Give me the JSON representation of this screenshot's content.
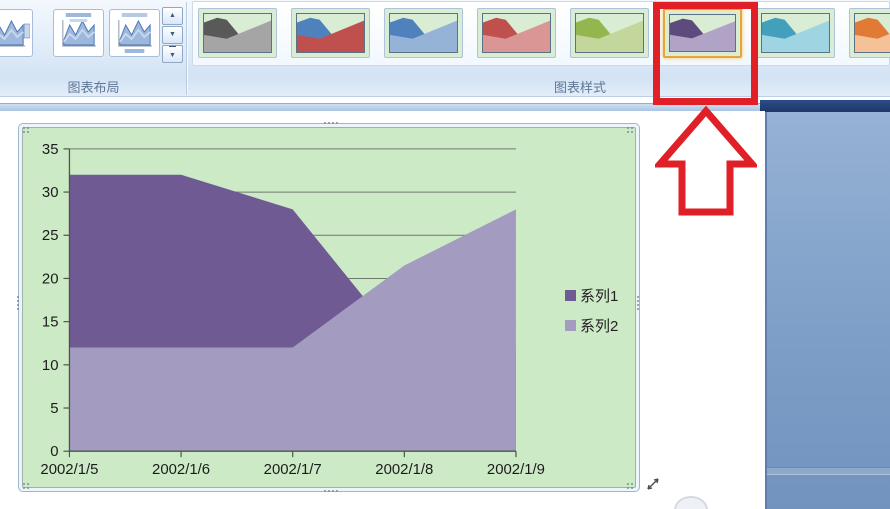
{
  "ribbon": {
    "chart_layout_group": {
      "label": "图表布局",
      "thumbnails": [
        {
          "name": "layout-option-partial",
          "variant": "legend-right"
        },
        {
          "name": "layout-option-2",
          "variant": "title-top"
        },
        {
          "name": "layout-option-3",
          "variant": "legend-bottom"
        }
      ]
    },
    "gallery_scroll": {
      "up_icon": "▲",
      "down_icon": "▼",
      "more_icon": "▼"
    },
    "chart_styles_group": {
      "label": "图表样式",
      "tile_bg": "#d8edd4",
      "selected_style_index": 5,
      "styles": [
        {
          "name": "style-gray",
          "dark": "#595959",
          "light": "#a5a5a5",
          "selected": false
        },
        {
          "name": "style-blue-red",
          "dark": "#4f81bd",
          "light": "#c0504d",
          "selected": false
        },
        {
          "name": "style-blue",
          "dark": "#4f81bd",
          "light": "#95b3d7",
          "selected": false
        },
        {
          "name": "style-red",
          "dark": "#c0504d",
          "light": "#d99694",
          "selected": false
        },
        {
          "name": "style-olive",
          "dark": "#94b64e",
          "light": "#c3d69b",
          "selected": false
        },
        {
          "name": "style-purple",
          "dark": "#5e4b7e",
          "light": "#b0a3c6",
          "selected": true
        },
        {
          "name": "style-teal",
          "dark": "#42a0bd",
          "light": "#9fd4e2",
          "selected": false
        },
        {
          "name": "style-orange",
          "dark": "#e07a35",
          "light": "#f5c198",
          "selected": false
        }
      ]
    }
  },
  "chart_data": {
    "type": "area",
    "categories": [
      "2002/1/5",
      "2002/1/6",
      "2002/1/7",
      "2002/1/8",
      "2002/1/9"
    ],
    "series": [
      {
        "name": "系列1",
        "color": "#6f5a93",
        "values": [
          32,
          32,
          28,
          12,
          null
        ]
      },
      {
        "name": "系列2",
        "color": "#a49bc0",
        "values": [
          12,
          12,
          12,
          21.5,
          28
        ]
      }
    ],
    "ylim": [
      0,
      35
    ],
    "ytick_step": 5,
    "plot_bg": "#cdeac6",
    "grid": true,
    "grid_color": "#70786c",
    "axis_color": "#4d544d",
    "label_color": "#1b1b1b",
    "legend_position": "right"
  },
  "annotations": {
    "highlight_box_color": "#e01f26",
    "arrow_color": "#e01f26",
    "arrow_direction": "up"
  }
}
